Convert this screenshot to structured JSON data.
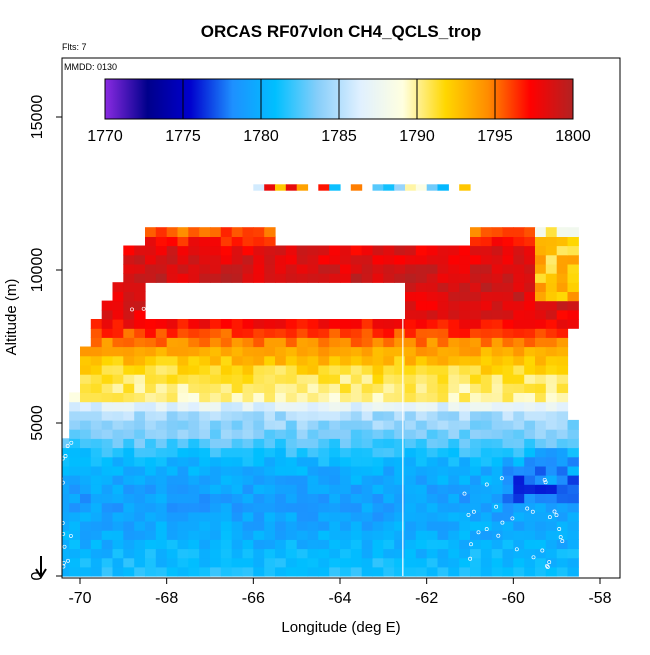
{
  "chart_data": {
    "type": "heatmap",
    "title": "ORCAS RF07vlon CH4_QCLS_trop",
    "subtitle_flights": "Flts: 7",
    "subtitle_date": "MMDD: 0130",
    "xlabel": "Longitude (deg E)",
    "ylabel": "Altitude (m)",
    "xlim": [
      -71.0,
      -57.6
    ],
    "ylim": [
      0,
      16500
    ],
    "x_ticks": [
      -70,
      -68,
      -66,
      -64,
      -62,
      -60,
      -58
    ],
    "x_tick_labels": [
      "-70",
      "-68",
      "-66",
      "-64",
      "-62",
      "-60",
      "-58"
    ],
    "y_ticks": [
      0,
      5000,
      10000,
      15000
    ],
    "y_tick_labels": [
      "0",
      "5000",
      "10000",
      "15000"
    ],
    "colorbar": {
      "min": 1770,
      "max": 1800,
      "ticks": [
        1770,
        1775,
        1780,
        1785,
        1790,
        1795,
        1800
      ],
      "tick_labels": [
        "1770",
        "1775",
        "1780",
        "1785",
        "1790",
        "1795",
        "1800"
      ],
      "stops": [
        "#8a2be2",
        "#00008b",
        "#0000cd",
        "#1e90ff",
        "#00bfff",
        "#87cefa",
        "#e0f0ff",
        "#ffffe0",
        "#ffd700",
        "#ff8c00",
        "#ff0000",
        "#b22222"
      ]
    },
    "cell_size": {
      "dlon": 0.25,
      "dalt": 300
    },
    "band_profile": [
      {
        "alt": 300,
        "value": 1781
      },
      {
        "alt": 1200,
        "value": 1780
      },
      {
        "alt": 2400,
        "value": 1779
      },
      {
        "alt": 3600,
        "value": 1780
      },
      {
        "alt": 4500,
        "value": 1783
      },
      {
        "alt": 5400,
        "value": 1785
      },
      {
        "alt": 5850,
        "value": 1790
      },
      {
        "alt": 6600,
        "value": 1791
      },
      {
        "alt": 7500,
        "value": 1794
      },
      {
        "alt": 8400,
        "value": 1798
      },
      {
        "alt": 9600,
        "value": 1799
      },
      {
        "alt": 10800,
        "value": 1798
      },
      {
        "alt": 12600,
        "value": 1788
      }
    ],
    "aircraft_marker": {
      "lon": -70.9,
      "alt": 0,
      "label": "aircraft-start"
    }
  }
}
